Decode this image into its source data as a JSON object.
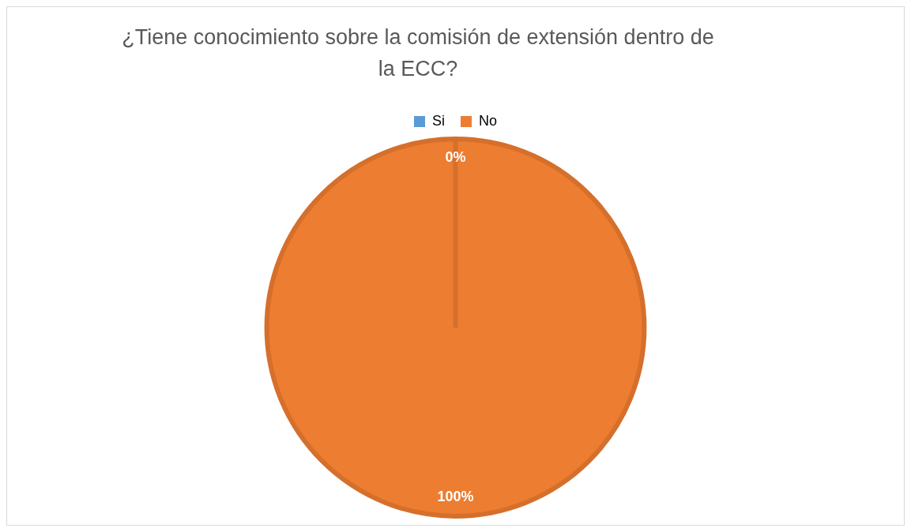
{
  "chart_data": {
    "type": "pie",
    "title": "¿Tiene conocimiento sobre la comisión de extensión dentro de la ECC?",
    "categories": [
      "Si",
      "No"
    ],
    "values": [
      0,
      100
    ],
    "colors": [
      "#5b9bd5",
      "#ed7d31"
    ],
    "value_labels": [
      "0%",
      "100%"
    ],
    "legend": "top"
  }
}
